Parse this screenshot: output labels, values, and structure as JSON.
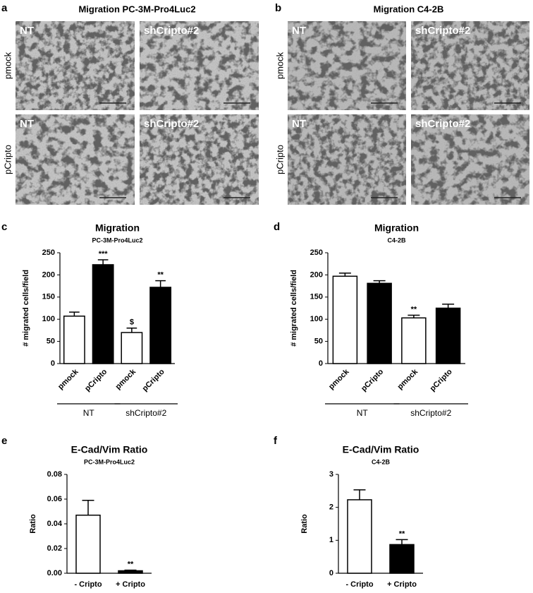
{
  "micrographs": [
    {
      "panel": "a",
      "title": "Migration PC-3M-Pro4Luc2",
      "row_labels": [
        "pmock",
        "pCripto"
      ],
      "column_labels": [
        "NT",
        "shCripto#2"
      ]
    },
    {
      "panel": "b",
      "title": "Migration C4-2B",
      "row_labels": [
        "pmock",
        "pCripto"
      ],
      "column_labels": [
        "NT",
        "shCripto#2"
      ]
    }
  ],
  "chart_data": [
    {
      "type": "bar",
      "panel": "c",
      "title": "Migration",
      "subtitle": "PC-3M-Pro4Luc2",
      "y_label": "# migrated cells/field",
      "categories": [
        "pmock",
        "pCripto",
        "pmock",
        "pCripto"
      ],
      "groups": [
        "NT",
        "shCripto#2"
      ],
      "values": [
        107,
        223,
        70,
        172
      ],
      "errors": [
        9,
        11,
        10,
        15
      ],
      "colors": [
        "#ffffff",
        "#000000",
        "#ffffff",
        "#000000"
      ],
      "significance": [
        null,
        "***",
        "$",
        "**"
      ],
      "ylim": [
        0,
        250
      ],
      "yticks": [
        0,
        50,
        100,
        150,
        200,
        250
      ]
    },
    {
      "type": "bar",
      "panel": "d",
      "title": "Migration",
      "subtitle": "C4-2B",
      "y_label": "# migrated cells/field",
      "categories": [
        "pmock",
        "pCripto",
        "pmock",
        "pCripto"
      ],
      "groups": [
        "NT",
        "shCripto#2"
      ],
      "values": [
        197,
        181,
        103,
        125
      ],
      "errors": [
        7,
        6,
        6,
        9
      ],
      "colors": [
        "#ffffff",
        "#000000",
        "#ffffff",
        "#000000"
      ],
      "significance": [
        null,
        null,
        "**",
        null
      ],
      "ylim": [
        0,
        250
      ],
      "yticks": [
        0,
        50,
        100,
        150,
        200,
        250
      ]
    },
    {
      "type": "bar",
      "panel": "e",
      "title": "E-Cad/Vim Ratio",
      "subtitle": "PC-3M-Pro4Luc2",
      "y_label": "Ratio",
      "categories": [
        "- Cripto",
        "+ Cripto"
      ],
      "values": [
        0.047,
        0.002
      ],
      "errors": [
        0.012,
        0.0005
      ],
      "colors": [
        "#ffffff",
        "#000000"
      ],
      "significance": [
        null,
        "**"
      ],
      "ylim": [
        0,
        0.08
      ],
      "yticks": [
        {
          "value": 0,
          "label": "0.00"
        },
        {
          "value": 0.02,
          "label": "0.02"
        },
        {
          "value": 0.04,
          "label": "0.04"
        },
        {
          "value": 0.06,
          "label": "0.06"
        },
        {
          "value": 0.08,
          "label": "0.08"
        }
      ]
    },
    {
      "type": "bar",
      "panel": "f",
      "title": "E-Cad/Vim Ratio",
      "subtitle": "C4-2B",
      "y_label": "Ratio",
      "categories": [
        "- Cripto",
        "+ Cripto"
      ],
      "values": [
        2.23,
        0.87
      ],
      "errors": [
        0.3,
        0.15
      ],
      "colors": [
        "#ffffff",
        "#000000"
      ],
      "significance": [
        null,
        "**"
      ],
      "ylim": [
        0,
        3
      ],
      "yticks": [
        0,
        1,
        2,
        3
      ]
    }
  ]
}
